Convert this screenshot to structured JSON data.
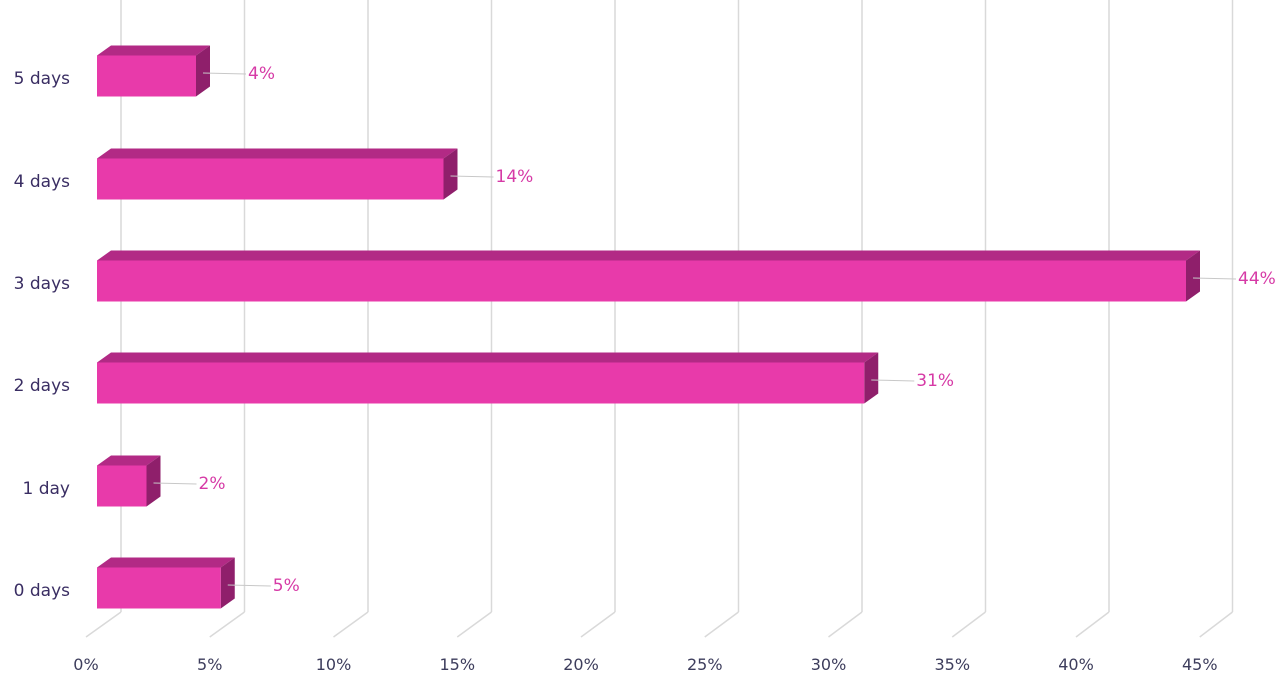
{
  "chart_data": {
    "type": "bar",
    "orientation": "horizontal",
    "style": "3d",
    "categories": [
      "5 days",
      "4 days",
      "3 days",
      "2 days",
      "1 day",
      "0 days"
    ],
    "values": [
      4,
      14,
      44,
      31,
      2,
      5
    ],
    "data_labels": [
      "4%",
      "14%",
      "44%",
      "31%",
      "2%",
      "5%"
    ],
    "x_ticks": [
      0,
      5,
      10,
      15,
      20,
      25,
      30,
      35,
      40,
      45
    ],
    "x_tick_labels": [
      "0%",
      "5%",
      "10%",
      "15%",
      "20%",
      "25%",
      "30%",
      "35%",
      "40%",
      "45%"
    ],
    "xlim": [
      0,
      45
    ],
    "grid": true,
    "legend": "none",
    "colors": {
      "bar_front": "#e83aaa",
      "bar_top": "#b22a85",
      "bar_side": "#8f1f6b",
      "data_label": "#d63aa6",
      "grid": "#d9d9d9"
    }
  }
}
